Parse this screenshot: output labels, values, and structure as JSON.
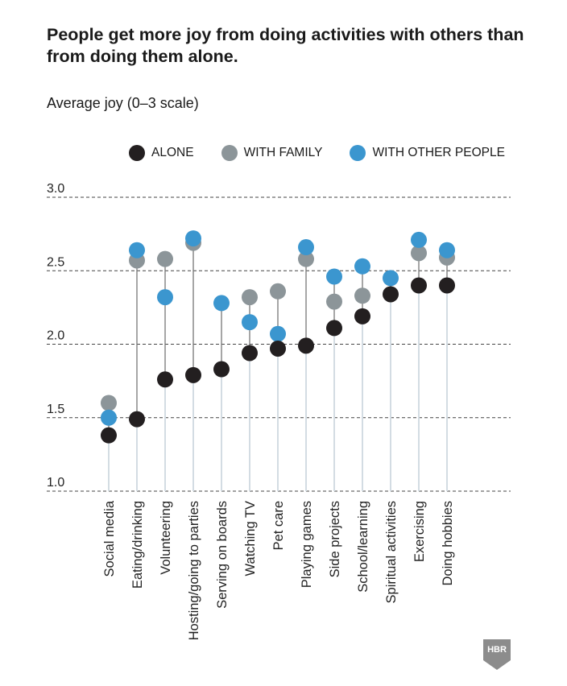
{
  "title": "People get more joy from doing activities with others than from doing them alone.",
  "subtitle": "Average joy (0–3 scale)",
  "logo_text": "HBR",
  "chart_data": {
    "type": "scatter",
    "title": "People get more joy from doing activities with others than from doing them alone.",
    "ylabel": "Average joy (0–3 scale)",
    "xlabel": "",
    "ylim": [
      1.0,
      3.0
    ],
    "yticks": [
      "1.0",
      "1.5",
      "2.0",
      "2.5",
      "3.0"
    ],
    "ytick_values": [
      1.0,
      1.5,
      2.0,
      2.5,
      3.0
    ],
    "grid": true,
    "legend_placement": "top",
    "categories": [
      "Social media",
      "Eating/drinking",
      "Volunteering",
      "Hosting/going to parties",
      "Serving on boards",
      "Watching TV",
      "Pet care",
      "Playing games",
      "Side projects",
      "School/learning",
      "Spiritual activities",
      "Exercising",
      "Doing hobbies"
    ],
    "series": [
      {
        "name": "ALONE",
        "color": "#231f20",
        "values": [
          1.38,
          1.49,
          1.76,
          1.79,
          1.83,
          1.94,
          1.97,
          1.99,
          2.11,
          2.19,
          2.34,
          2.4,
          2.4
        ]
      },
      {
        "name": "WITH FAMILY",
        "color": "#8c9599",
        "values": [
          1.6,
          2.57,
          2.58,
          2.69,
          null,
          2.32,
          2.36,
          2.58,
          2.29,
          2.33,
          null,
          2.62,
          2.59
        ]
      },
      {
        "name": "WITH OTHER PEOPLE",
        "color": "#3b96cf",
        "values": [
          1.5,
          2.64,
          2.32,
          2.72,
          2.28,
          2.15,
          2.07,
          2.66,
          2.46,
          2.53,
          2.45,
          2.71,
          2.64
        ]
      }
    ]
  }
}
